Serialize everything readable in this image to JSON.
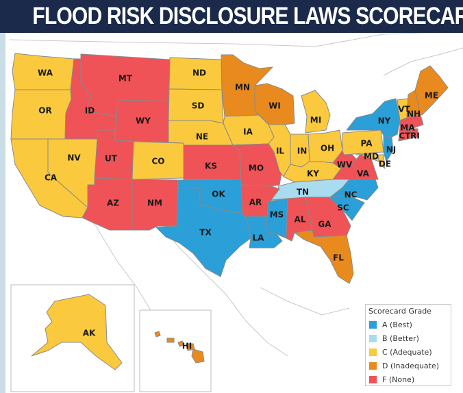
{
  "title": "FLOOD RISK DISCLOSURE LAWS SCORECARD",
  "colors": {
    "A": "#2a9fd8",
    "B": "#a9dcef",
    "C": "#fbc93d",
    "D": "#e98a1e",
    "F": "#ef5257",
    "outline": "#8a8a8a",
    "background": "#ffffff",
    "title_bar": "#1b2a4a"
  },
  "legend": {
    "title": "Scorecard Grade",
    "items": [
      {
        "grade": "A",
        "label": "A (Best)"
      },
      {
        "grade": "B",
        "label": "B (Better)"
      },
      {
        "grade": "C",
        "label": "C (Adequate)"
      },
      {
        "grade": "D",
        "label": "D (Inadequate)"
      },
      {
        "grade": "F",
        "label": "F (None)"
      }
    ]
  },
  "states": [
    {
      "abbr": "WA",
      "grade": "C"
    },
    {
      "abbr": "OR",
      "grade": "C"
    },
    {
      "abbr": "CA",
      "grade": "C"
    },
    {
      "abbr": "NV",
      "grade": "C"
    },
    {
      "abbr": "ID",
      "grade": "F"
    },
    {
      "abbr": "MT",
      "grade": "F"
    },
    {
      "abbr": "WY",
      "grade": "F"
    },
    {
      "abbr": "UT",
      "grade": "F"
    },
    {
      "abbr": "CO",
      "grade": "C"
    },
    {
      "abbr": "AZ",
      "grade": "F"
    },
    {
      "abbr": "NM",
      "grade": "F"
    },
    {
      "abbr": "ND",
      "grade": "C"
    },
    {
      "abbr": "SD",
      "grade": "C"
    },
    {
      "abbr": "NE",
      "grade": "C"
    },
    {
      "abbr": "KS",
      "grade": "F"
    },
    {
      "abbr": "OK",
      "grade": "A"
    },
    {
      "abbr": "TX",
      "grade": "A"
    },
    {
      "abbr": "MN",
      "grade": "D"
    },
    {
      "abbr": "IA",
      "grade": "C"
    },
    {
      "abbr": "MO",
      "grade": "F"
    },
    {
      "abbr": "AR",
      "grade": "F"
    },
    {
      "abbr": "LA",
      "grade": "A"
    },
    {
      "abbr": "WI",
      "grade": "D"
    },
    {
      "abbr": "IL",
      "grade": "C"
    },
    {
      "abbr": "MI",
      "grade": "C"
    },
    {
      "abbr": "IN",
      "grade": "C"
    },
    {
      "abbr": "OH",
      "grade": "C"
    },
    {
      "abbr": "KY",
      "grade": "C"
    },
    {
      "abbr": "TN",
      "grade": "B"
    },
    {
      "abbr": "MS",
      "grade": "A"
    },
    {
      "abbr": "AL",
      "grade": "F"
    },
    {
      "abbr": "GA",
      "grade": "F"
    },
    {
      "abbr": "FL",
      "grade": "D"
    },
    {
      "abbr": "SC",
      "grade": "A"
    },
    {
      "abbr": "NC",
      "grade": "A"
    },
    {
      "abbr": "VA",
      "grade": "F"
    },
    {
      "abbr": "WV",
      "grade": "F"
    },
    {
      "abbr": "PA",
      "grade": "C"
    },
    {
      "abbr": "NY",
      "grade": "A"
    },
    {
      "abbr": "VT",
      "grade": "C"
    },
    {
      "abbr": "NH",
      "grade": "D"
    },
    {
      "abbr": "ME",
      "grade": "D"
    },
    {
      "abbr": "MA",
      "grade": "F"
    },
    {
      "abbr": "CT",
      "grade": "F"
    },
    {
      "abbr": "RI",
      "grade": "F"
    },
    {
      "abbr": "NJ",
      "grade": "A"
    },
    {
      "abbr": "DE",
      "grade": "C"
    },
    {
      "abbr": "MD",
      "grade": "C"
    },
    {
      "abbr": "AK",
      "grade": "C"
    },
    {
      "abbr": "HI",
      "grade": "D"
    }
  ]
}
